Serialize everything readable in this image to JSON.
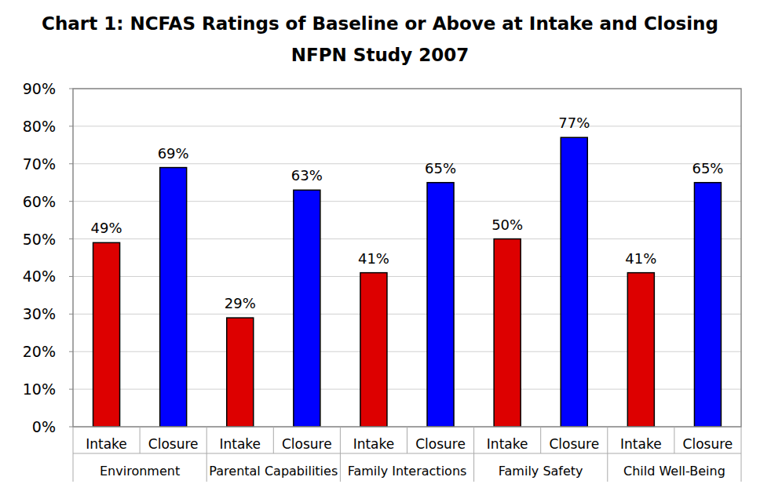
{
  "chart_data": {
    "type": "bar",
    "title": "Chart 1: NCFAS Ratings of Baseline or Above at Intake and Closing",
    "subtitle": "NFPN Study 2007",
    "categories": [
      "Environment",
      "Parental Capabilities",
      "Family Interactions",
      "Family Safety",
      "Child Well-Being"
    ],
    "series": [
      {
        "name": "Intake",
        "color": "#dd0000",
        "values": [
          49,
          29,
          41,
          50,
          41
        ],
        "value_labels": [
          "49%",
          "29%",
          "41%",
          "50%",
          "41%"
        ]
      },
      {
        "name": "Closure",
        "color": "#0000ff",
        "values": [
          69,
          63,
          65,
          77,
          65
        ],
        "value_labels": [
          "69%",
          "63%",
          "65%",
          "77%",
          "65%"
        ]
      }
    ],
    "ylim": [
      0,
      90
    ],
    "yticks": [
      {
        "value": 0,
        "label": "0%"
      },
      {
        "value": 10,
        "label": "10%"
      },
      {
        "value": 20,
        "label": "20%"
      },
      {
        "value": 30,
        "label": "30%"
      },
      {
        "value": 40,
        "label": "40%"
      },
      {
        "value": 50,
        "label": "50%"
      },
      {
        "value": 60,
        "label": "60%"
      },
      {
        "value": 70,
        "label": "70%"
      },
      {
        "value": 80,
        "label": "80%"
      },
      {
        "value": 90,
        "label": "90%"
      }
    ],
    "grid": true,
    "data_labels": true
  }
}
